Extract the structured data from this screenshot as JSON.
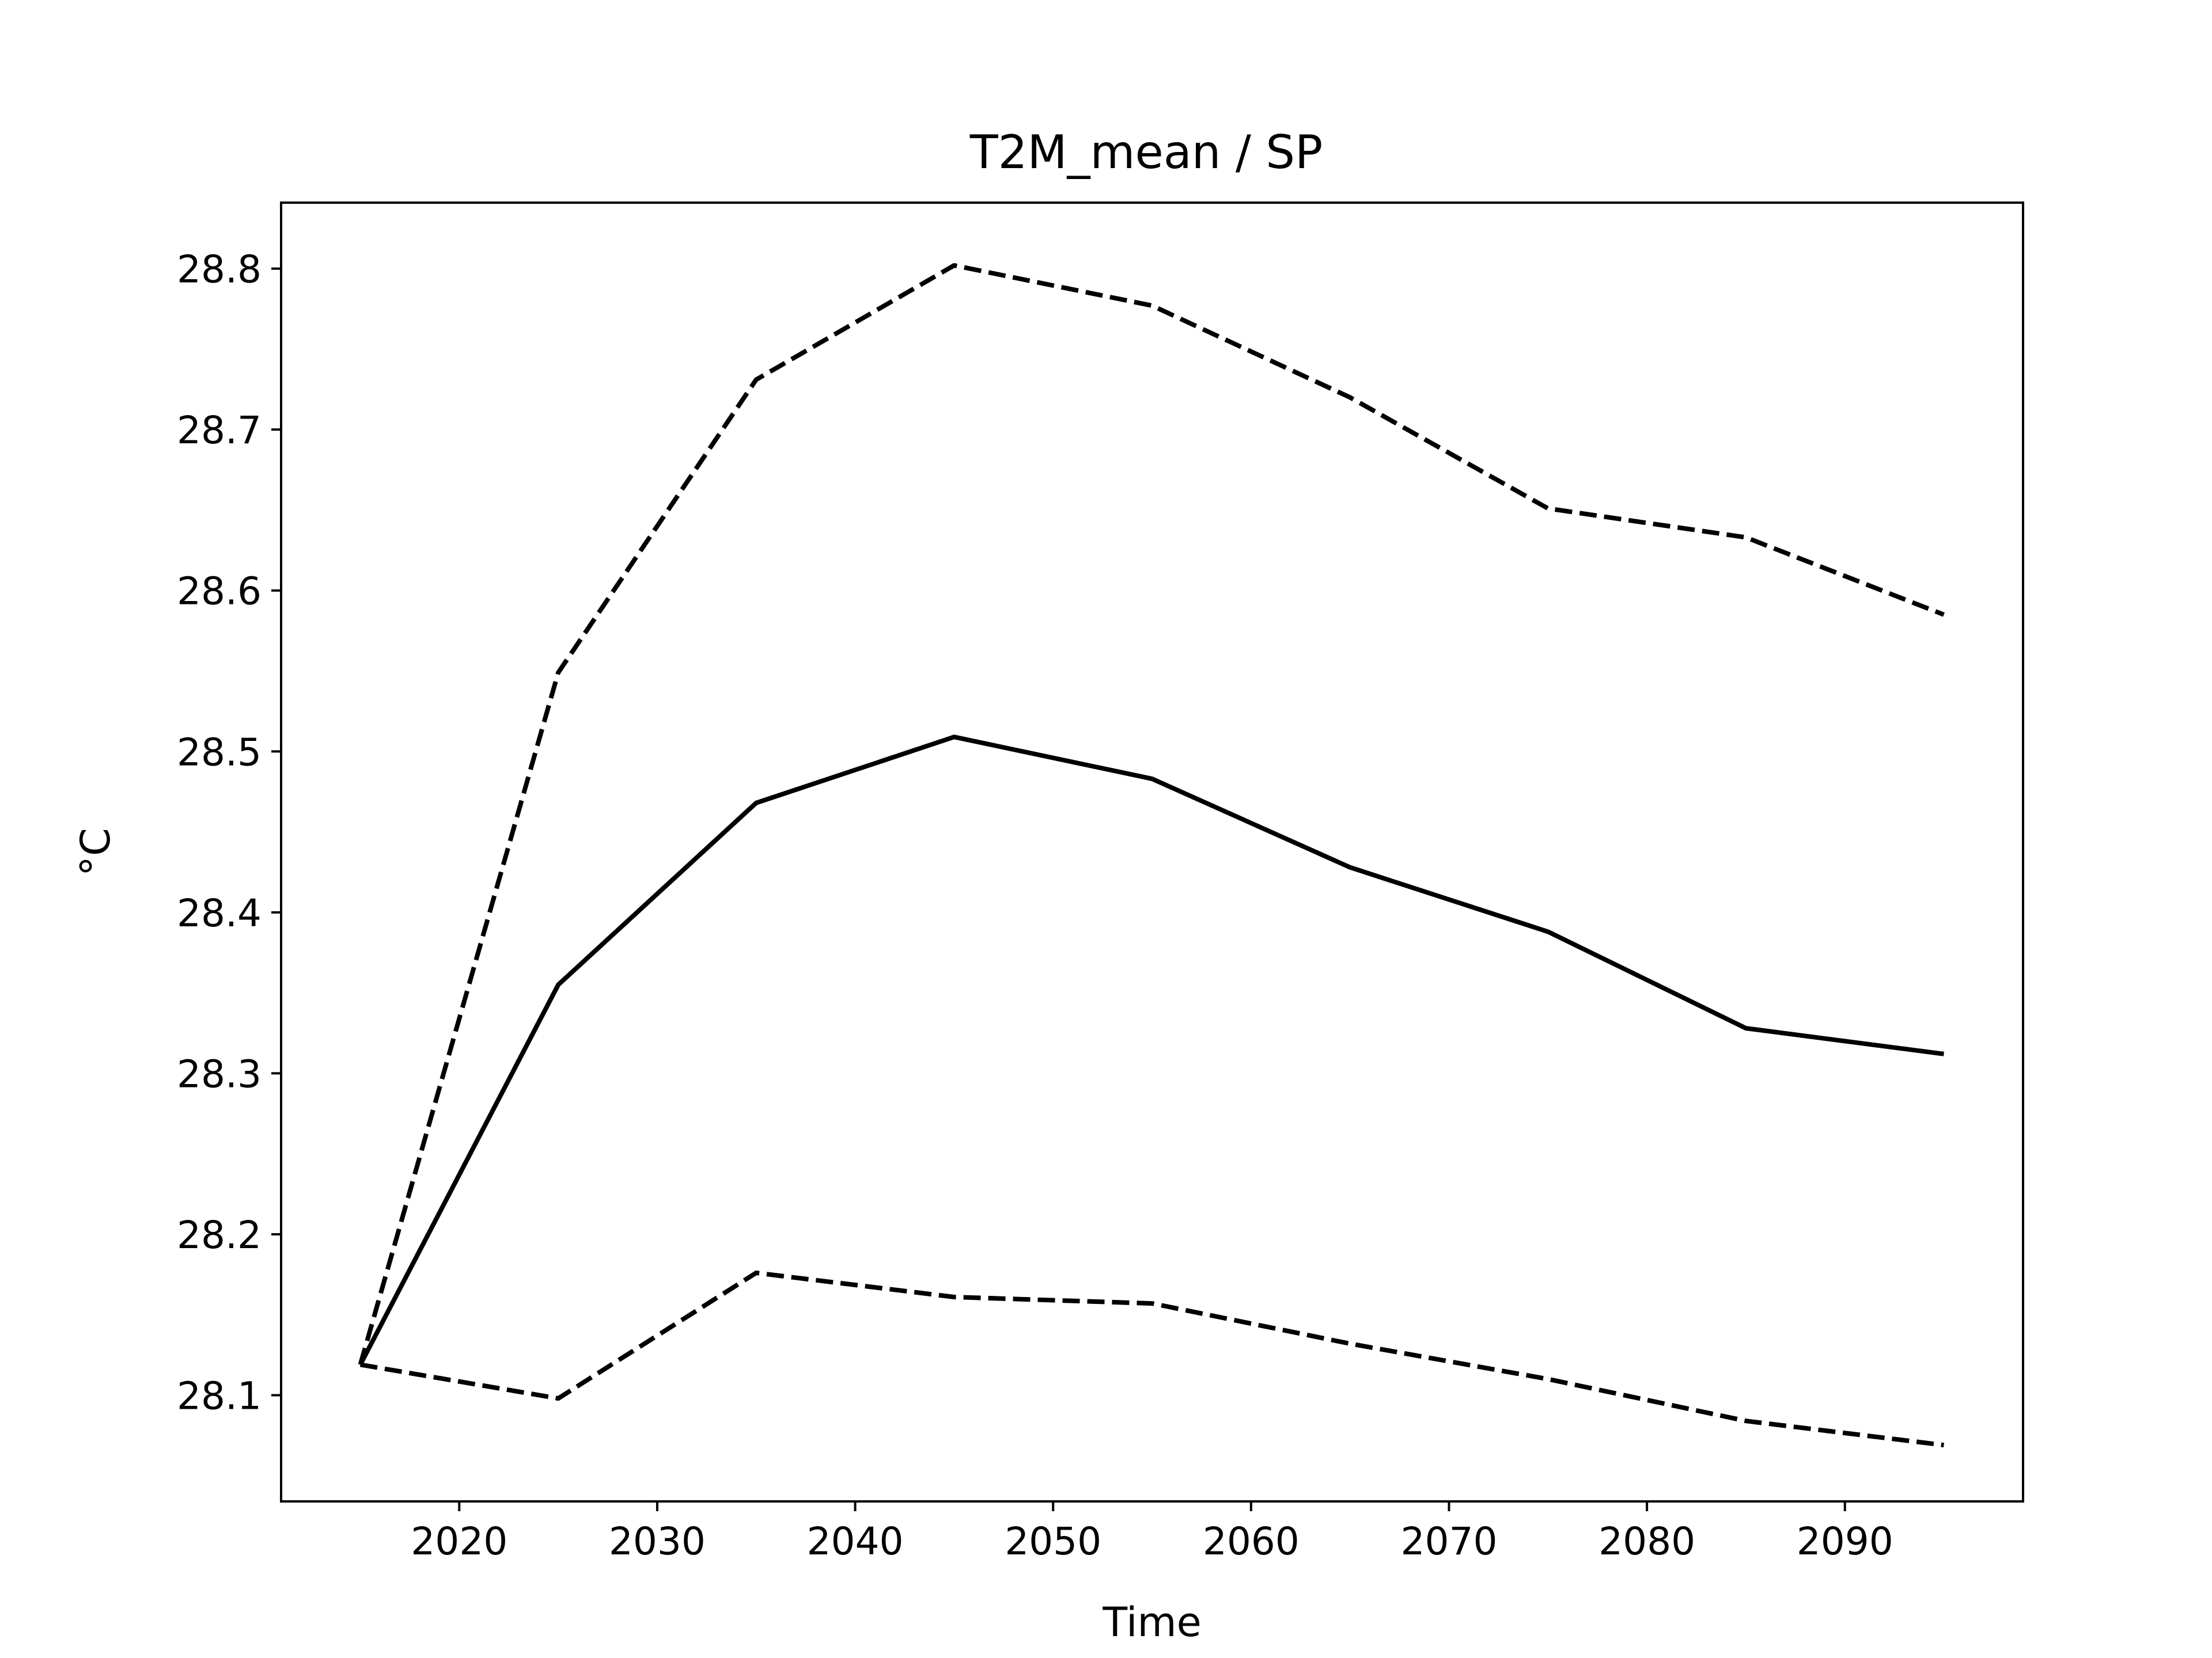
{
  "chart_data": {
    "type": "line",
    "title": "T2M_mean / SP",
    "xlabel": "Time",
    "ylabel": "°C",
    "xlim": [
      2011,
      2099
    ],
    "ylim": [
      28.034,
      28.841
    ],
    "xticks": [
      2020,
      2030,
      2040,
      2050,
      2060,
      2070,
      2080,
      2090
    ],
    "yticks": [
      28.1,
      28.2,
      28.3,
      28.4,
      28.5,
      28.6,
      28.7,
      28.8
    ],
    "grid": false,
    "legend": "none",
    "x": [
      2015,
      2025,
      2035,
      2045,
      2055,
      2065,
      2075,
      2085,
      2095
    ],
    "series": [
      {
        "style": "solid",
        "color": "#000000",
        "values": [
          28.119,
          28.355,
          28.468,
          28.509,
          28.483,
          28.428,
          28.388,
          28.328,
          28.312
        ]
      },
      {
        "style": "dashed",
        "color": "#000000",
        "values": [
          28.119,
          28.549,
          28.731,
          28.802,
          28.777,
          28.72,
          28.651,
          28.633,
          28.585
        ]
      },
      {
        "style": "dashed",
        "color": "#000000",
        "values": [
          28.119,
          28.098,
          28.176,
          28.161,
          28.157,
          28.132,
          28.11,
          28.084,
          28.069
        ]
      }
    ]
  }
}
